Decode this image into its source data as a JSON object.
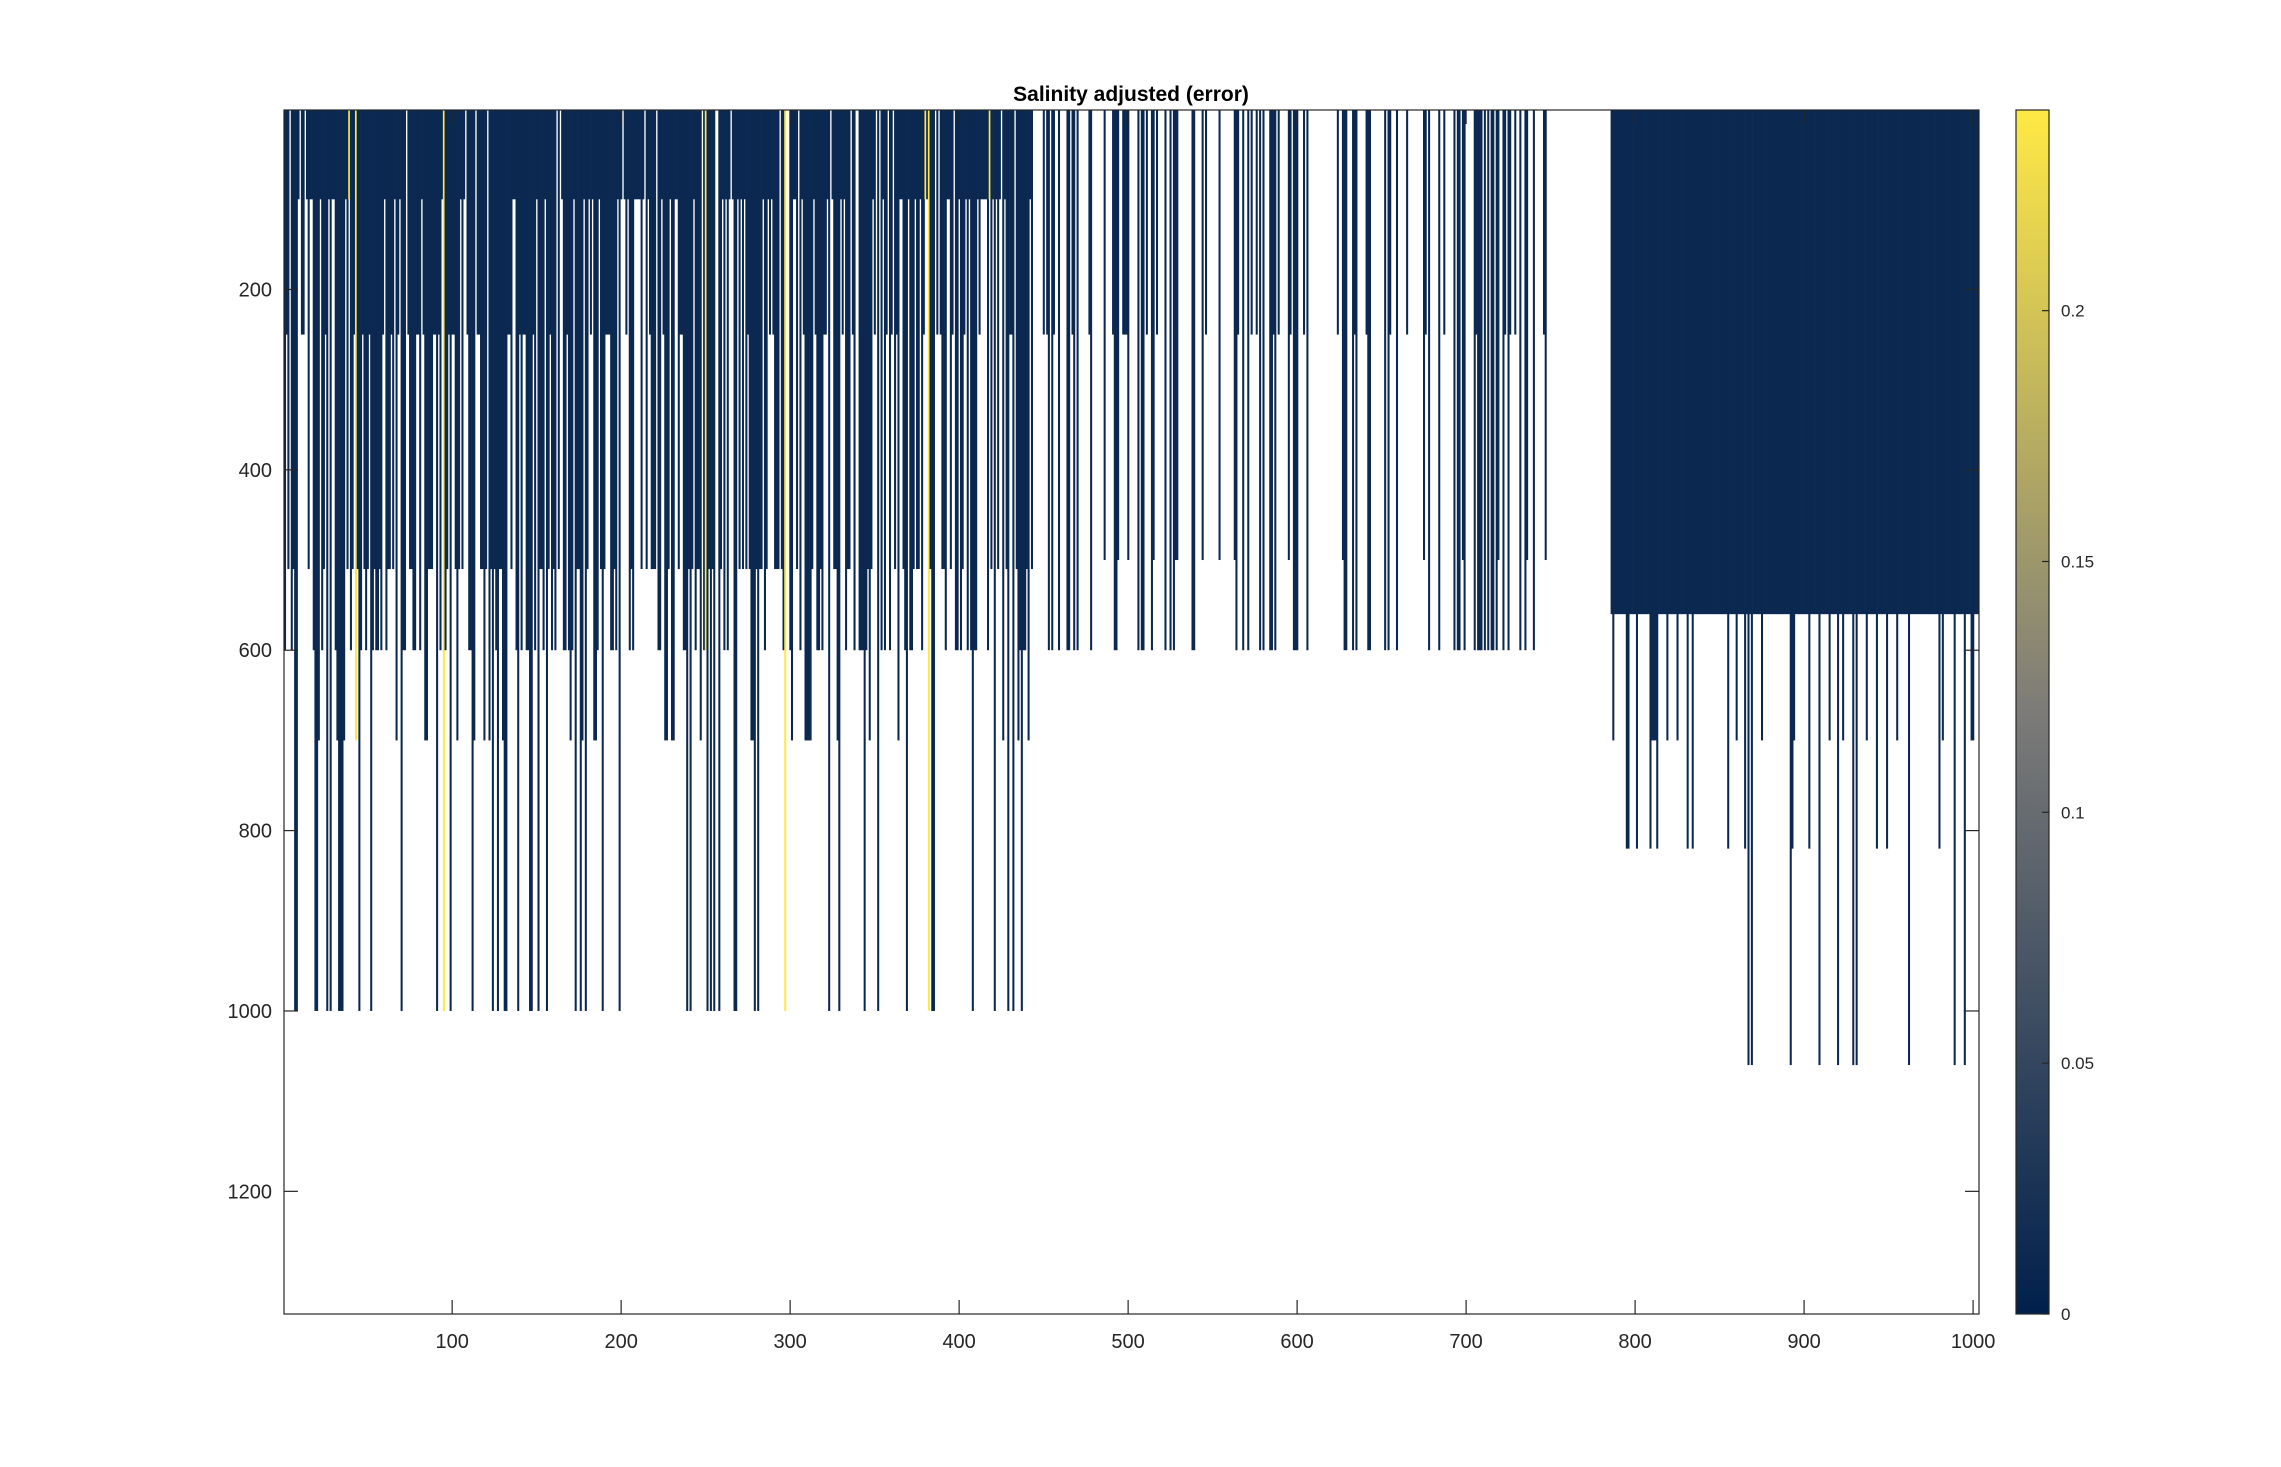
{
  "chart_data": {
    "type": "heatmap",
    "title": "Salinity adjusted (error)",
    "xlabel": "",
    "ylabel": "",
    "xlim": [
      1,
      1003
    ],
    "ylim": [
      1336,
      1
    ],
    "y_reversed": true,
    "xticks": [
      100,
      200,
      300,
      400,
      500,
      600,
      700,
      800,
      900,
      1000
    ],
    "xtick_labels": [
      "100",
      "200",
      "300",
      "400",
      "500",
      "600",
      "700",
      "800",
      "900",
      "1000"
    ],
    "yticks": [
      200,
      400,
      600,
      800,
      1000,
      1200
    ],
    "ytick_labels": [
      "200",
      "400",
      "600",
      "800",
      "1000",
      "1200"
    ],
    "colormap": "cividis",
    "colormap_low": "#00204c",
    "colormap_mid": "#7c7b78",
    "colormap_high": "#ffe945",
    "clim": [
      0,
      0.24
    ],
    "colorbar_ticks": [
      0,
      0.05,
      0.1,
      0.15,
      0.2
    ],
    "colorbar_tick_labels": [
      "0",
      "0.05",
      "0.1",
      "0.15",
      "0.2"
    ],
    "colorbar_position": "right",
    "grid": false,
    "nan_color": "#ffffff",
    "description_of_columns": "Each column is one profile; colored from depth 1 down to its maximum depth, white (no data) below.",
    "column_groups": [
      {
        "x_range": [
          1,
          445
        ],
        "value": 0.01,
        "typical_depth": 500,
        "deep_profile_depth": 1000
      },
      {
        "x_range": [
          446,
          748
        ],
        "value": 0.01,
        "typical_depth": 600
      },
      {
        "x_range": [
          786,
          1003
        ],
        "value": 0.01,
        "typical_depth": 560,
        "deep_profile_depth": 1060
      }
    ],
    "high_error_columns": [
      {
        "x": 39,
        "value": 0.24
      },
      {
        "x": 43,
        "value": 0.24
      },
      {
        "x": 95,
        "value": 0.24
      },
      {
        "x": 248,
        "value": 0.24
      },
      {
        "x": 250,
        "value": 0.24
      },
      {
        "x": 297,
        "value": 0.24
      },
      {
        "x": 299,
        "value": 0.24
      },
      {
        "x": 380,
        "value": 0.24
      },
      {
        "x": 382,
        "value": 0.24
      },
      {
        "x": 418,
        "value": 0.24
      }
    ]
  }
}
